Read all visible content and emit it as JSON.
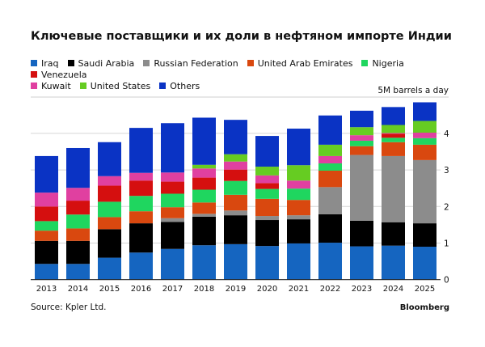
{
  "title": "Ключевые поставщики и их доли в нефтяном импорте Индии",
  "source": "Source: Kpler Ltd.",
  "brand": "Bloomberg",
  "chart_data": {
    "type": "bar",
    "stacked": true,
    "title": "Ключевые поставщики и их доли в нефтяном импорте Индии",
    "unit_label": "5M barrels a day",
    "categories": [
      "2013",
      "2014",
      "2015",
      "2016",
      "2017",
      "2018",
      "2019",
      "2020",
      "2021",
      "2022",
      "2023",
      "2024",
      "2025"
    ],
    "ylim": [
      0,
      5
    ],
    "yticks": [
      "0",
      "1",
      "2",
      "3",
      "4"
    ],
    "grid": true,
    "y_axis_side": "right",
    "legend_placement": "top",
    "series": [
      {
        "name": "Iraq",
        "color": "#1565c0",
        "values": [
          0.43,
          0.43,
          0.6,
          0.74,
          0.84,
          0.94,
          0.97,
          0.92,
          0.99,
          1.01,
          0.91,
          0.93,
          0.9
        ]
      },
      {
        "name": "Saudi Arabia",
        "color": "#000000",
        "values": [
          0.63,
          0.63,
          0.78,
          0.8,
          0.74,
          0.78,
          0.79,
          0.71,
          0.66,
          0.78,
          0.7,
          0.64,
          0.64
        ]
      },
      {
        "name": "Russian Federation",
        "color": "#8c8c8c",
        "values": [
          0,
          0,
          0,
          0,
          0.1,
          0.08,
          0.13,
          0.11,
          0.11,
          0.74,
          1.8,
          1.81,
          1.73
        ]
      },
      {
        "name": "United Arab Emirates",
        "color": "#d9480f",
        "values": [
          0.28,
          0.34,
          0.33,
          0.33,
          0.3,
          0.31,
          0.43,
          0.47,
          0.42,
          0.45,
          0.24,
          0.38,
          0.42
        ]
      },
      {
        "name": "Nigeria",
        "color": "#1fd65f",
        "values": [
          0.26,
          0.38,
          0.42,
          0.42,
          0.37,
          0.35,
          0.38,
          0.27,
          0.31,
          0.2,
          0.15,
          0.12,
          0.18
        ]
      },
      {
        "name": "Venezuela",
        "color": "#d50f0f",
        "values": [
          0.4,
          0.38,
          0.44,
          0.42,
          0.33,
          0.33,
          0.31,
          0.16,
          0,
          0,
          0,
          0.11,
          0
        ]
      },
      {
        "name": "Kuwait",
        "color": "#e040a0",
        "values": [
          0.38,
          0.35,
          0.26,
          0.21,
          0.25,
          0.25,
          0.22,
          0.21,
          0.22,
          0.2,
          0.15,
          0.02,
          0.15
        ]
      },
      {
        "name": "United States",
        "color": "#66cc22",
        "values": [
          0,
          0,
          0,
          0,
          0,
          0.1,
          0.2,
          0.24,
          0.42,
          0.31,
          0.22,
          0.22,
          0.32
        ]
      },
      {
        "name": "Others",
        "color": "#0a33c4",
        "values": [
          1.0,
          1.09,
          0.93,
          1.23,
          1.35,
          1.29,
          0.94,
          0.84,
          1.0,
          0.8,
          0.45,
          0.49,
          0.51
        ]
      }
    ]
  }
}
